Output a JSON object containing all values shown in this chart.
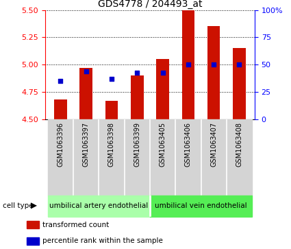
{
  "title": "GDS4778 / 204493_at",
  "samples": [
    "GSM1063396",
    "GSM1063397",
    "GSM1063398",
    "GSM1063399",
    "GSM1063405",
    "GSM1063406",
    "GSM1063407",
    "GSM1063408"
  ],
  "transformed_counts": [
    4.68,
    4.97,
    4.67,
    4.9,
    5.05,
    5.5,
    5.35,
    5.15
  ],
  "percentile_ranks": [
    35,
    44,
    37,
    43,
    43,
    50,
    50,
    50
  ],
  "ylim_left": [
    4.5,
    5.5
  ],
  "ylim_right": [
    0,
    100
  ],
  "yticks_left": [
    4.5,
    4.75,
    5.0,
    5.25,
    5.5
  ],
  "yticks_right": [
    0,
    25,
    50,
    75,
    100
  ],
  "cell_type_groups": [
    {
      "label": "umbilical artery endothelial",
      "start": 0,
      "end": 3,
      "color": "#aaffaa"
    },
    {
      "label": "umbilical vein endothelial",
      "start": 4,
      "end": 7,
      "color": "#55ee55"
    }
  ],
  "bar_color": "#cc1100",
  "dot_color": "#0000cc",
  "bar_bottom": 4.5,
  "legend_items": [
    {
      "label": "transformed count",
      "color": "#cc1100"
    },
    {
      "label": "percentile rank within the sample",
      "color": "#0000cc"
    }
  ],
  "title_fontsize": 10,
  "tick_fontsize": 8,
  "label_fontsize": 7.5,
  "sample_fontsize": 7
}
